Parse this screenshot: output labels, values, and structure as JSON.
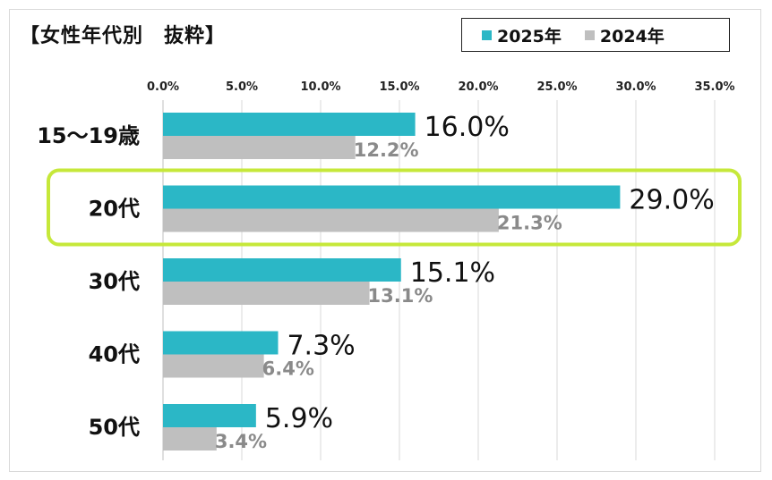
{
  "title": "【女性年代別　抜粋】",
  "colors": {
    "series_2025": "#2bb7c6",
    "series_2024": "#bfbfbf",
    "highlight": "#c6e83a",
    "label_2024": "#8a8a8a"
  },
  "chart_data": {
    "type": "bar",
    "orientation": "horizontal",
    "title": "【女性年代別　抜粋】",
    "categories": [
      "15～19歳",
      "20代",
      "30代",
      "40代",
      "50代"
    ],
    "series": [
      {
        "name": "2025年",
        "values": [
          16.0,
          29.0,
          15.1,
          7.3,
          5.9
        ],
        "labels": [
          "16.0%",
          "29.0%",
          "15.1%",
          "7.3%",
          "5.9%"
        ]
      },
      {
        "name": "2024年",
        "values": [
          12.2,
          21.3,
          13.1,
          6.4,
          3.4
        ],
        "labels": [
          "12.2%",
          "21.3%",
          "13.1%",
          "6.4%",
          "3.4%"
        ]
      }
    ],
    "xlim": [
      0,
      35
    ],
    "ticks": [
      {
        "value": 0,
        "label": "0.0%"
      },
      {
        "value": 5,
        "label": "5.0%"
      },
      {
        "value": 10,
        "label": "10.0%"
      },
      {
        "value": 15,
        "label": "15.0%"
      },
      {
        "value": 20,
        "label": "20.0%"
      },
      {
        "value": 25,
        "label": "25.0%"
      },
      {
        "value": 30,
        "label": "30.0%"
      },
      {
        "value": 35,
        "label": "35.0%"
      }
    ],
    "axis_position": "top",
    "grid": true,
    "legend_position": "top-right",
    "highlighted_category": "20代"
  }
}
